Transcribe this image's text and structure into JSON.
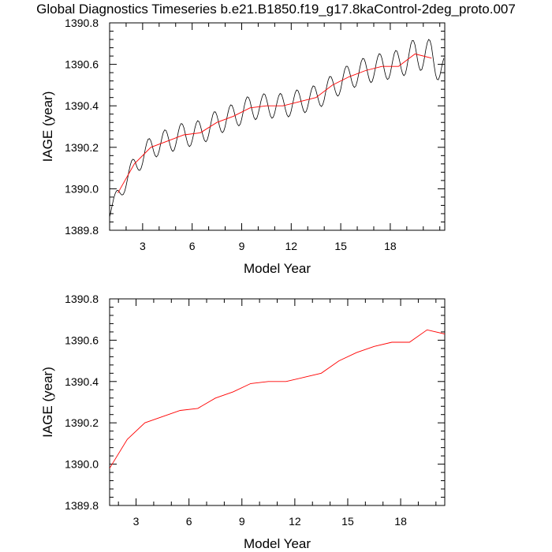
{
  "page": {
    "title": "Global Diagnostics Timeseries b.e21.B1850.f19_g17.8kaControl-2deg_proto.007"
  },
  "colors": {
    "monthly_line": "#000000",
    "annual_line": "#ff0000",
    "axis": "#000000"
  },
  "chart_data": [
    {
      "type": "line",
      "xlabel": "Model Year",
      "ylabel": "IAGE (year)",
      "xlim": [
        1,
        21.3
      ],
      "ylim": [
        1389.8,
        1390.8
      ],
      "xticks": [
        3,
        6,
        9,
        12,
        15,
        18
      ],
      "yticks": [
        1389.8,
        1390.0,
        1390.2,
        1390.4,
        1390.6,
        1390.8
      ],
      "ytick_labels": [
        "1389.8",
        "1390.0",
        "1390.2",
        "1390.4",
        "1390.6",
        "1390.8"
      ],
      "series": [
        {
          "kind": "monthly",
          "color": "#000000",
          "start_x": 1.0,
          "step": 0.0833,
          "trend_x": [
            1.0,
            1.5,
            2.5,
            3.5,
            4.5,
            5.5,
            6.5,
            7.5,
            8.5,
            9.5,
            10.5,
            11.5,
            12.5,
            13.5,
            14.5,
            15.5,
            16.5,
            17.5,
            18.5,
            19.5,
            20.5,
            21.3
          ],
          "trend_y": [
            1389.88,
            1389.97,
            1390.11,
            1390.2,
            1390.23,
            1390.26,
            1390.27,
            1390.32,
            1390.35,
            1390.39,
            1390.4,
            1390.4,
            1390.42,
            1390.44,
            1390.49,
            1390.54,
            1390.57,
            1390.59,
            1390.6,
            1390.65,
            1390.64,
            1390.56
          ],
          "seasonal_amplitude": [
            0.03,
            0.04,
            0.05,
            0.055,
            0.06,
            0.06,
            0.06,
            0.06,
            0.06,
            0.06,
            0.06,
            0.06,
            0.06,
            0.06,
            0.06,
            0.06,
            0.065,
            0.065,
            0.07,
            0.075,
            0.08,
            0.08
          ]
        },
        {
          "kind": "annual",
          "color": "#ff0000",
          "x": [
            1.5,
            2.5,
            3.5,
            4.5,
            5.5,
            6.5,
            7.5,
            8.5,
            9.5,
            10.5,
            11.5,
            12.5,
            13.5,
            14.5,
            15.5,
            16.5,
            17.5,
            18.5,
            19.5,
            20.5
          ],
          "y": [
            1389.98,
            1390.12,
            1390.2,
            1390.23,
            1390.26,
            1390.27,
            1390.32,
            1390.35,
            1390.39,
            1390.4,
            1390.4,
            1390.42,
            1390.44,
            1390.5,
            1390.54,
            1390.57,
            1390.59,
            1390.59,
            1390.65,
            1390.63
          ]
        }
      ]
    },
    {
      "type": "line",
      "xlabel": "Model Year",
      "ylabel": "IAGE (year)",
      "xlim": [
        1.5,
        20.5
      ],
      "ylim": [
        1389.8,
        1390.8
      ],
      "xticks": [
        3,
        6,
        9,
        12,
        15,
        18
      ],
      "yticks": [
        1389.8,
        1390.0,
        1390.2,
        1390.4,
        1390.6,
        1390.8
      ],
      "ytick_labels": [
        "1389.8",
        "1390.0",
        "1390.2",
        "1390.4",
        "1390.6",
        "1390.8"
      ],
      "series": [
        {
          "kind": "annual",
          "color": "#ff0000",
          "x": [
            1.5,
            2.5,
            3.5,
            4.5,
            5.5,
            6.5,
            7.5,
            8.5,
            9.5,
            10.5,
            11.5,
            12.5,
            13.5,
            14.5,
            15.5,
            16.5,
            17.5,
            18.5,
            19.5,
            20.5
          ],
          "y": [
            1389.98,
            1390.12,
            1390.2,
            1390.23,
            1390.26,
            1390.27,
            1390.32,
            1390.35,
            1390.39,
            1390.4,
            1390.4,
            1390.42,
            1390.44,
            1390.5,
            1390.54,
            1390.57,
            1390.59,
            1390.59,
            1390.65,
            1390.63
          ]
        }
      ]
    }
  ]
}
